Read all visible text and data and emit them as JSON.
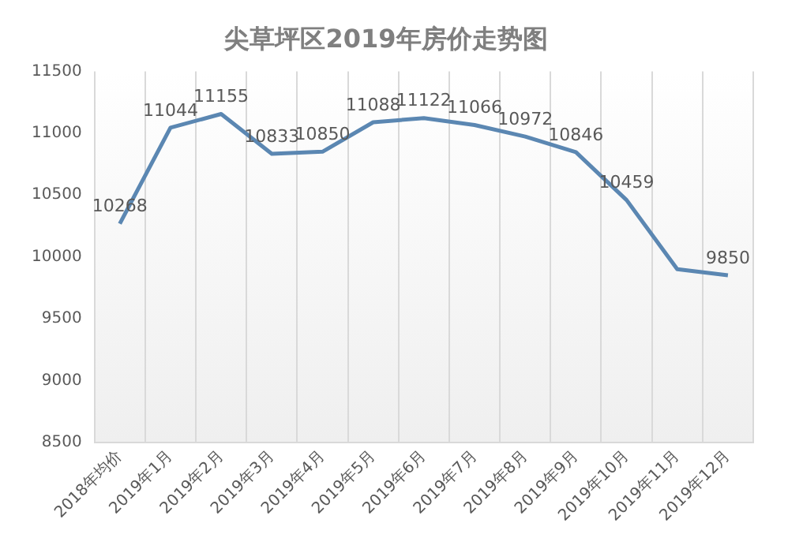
{
  "chart_data": {
    "type": "line",
    "title": "尖草坪区2019年房价走势图",
    "categories": [
      "2018年均价",
      "2019年1月",
      "2019年2月",
      "2019年3月",
      "2019年4月",
      "2019年5月",
      "2019年6月",
      "2019年7月",
      "2019年8月",
      "2019年9月",
      "2019年10月",
      "2019年11月",
      "2019年12月"
    ],
    "series": [
      {
        "color": "#5b87b2",
        "values": [
          10268,
          11044,
          11155,
          10833,
          10850,
          11088,
          11122,
          11066,
          10972,
          10846,
          10459,
          9900,
          9850
        ],
        "value_labels": [
          "10268",
          "11044",
          "11155",
          "10833",
          "10850",
          "11088",
          "11122",
          "11066",
          "10972",
          "10846",
          "10459",
          null,
          "9850"
        ]
      }
    ],
    "ylim": [
      8500,
      11500
    ],
    "yticks": [
      8500,
      9000,
      9500,
      10000,
      10500,
      11000,
      11500
    ],
    "grid": "x",
    "legend": false,
    "marker": "none",
    "line_style": "solid"
  }
}
